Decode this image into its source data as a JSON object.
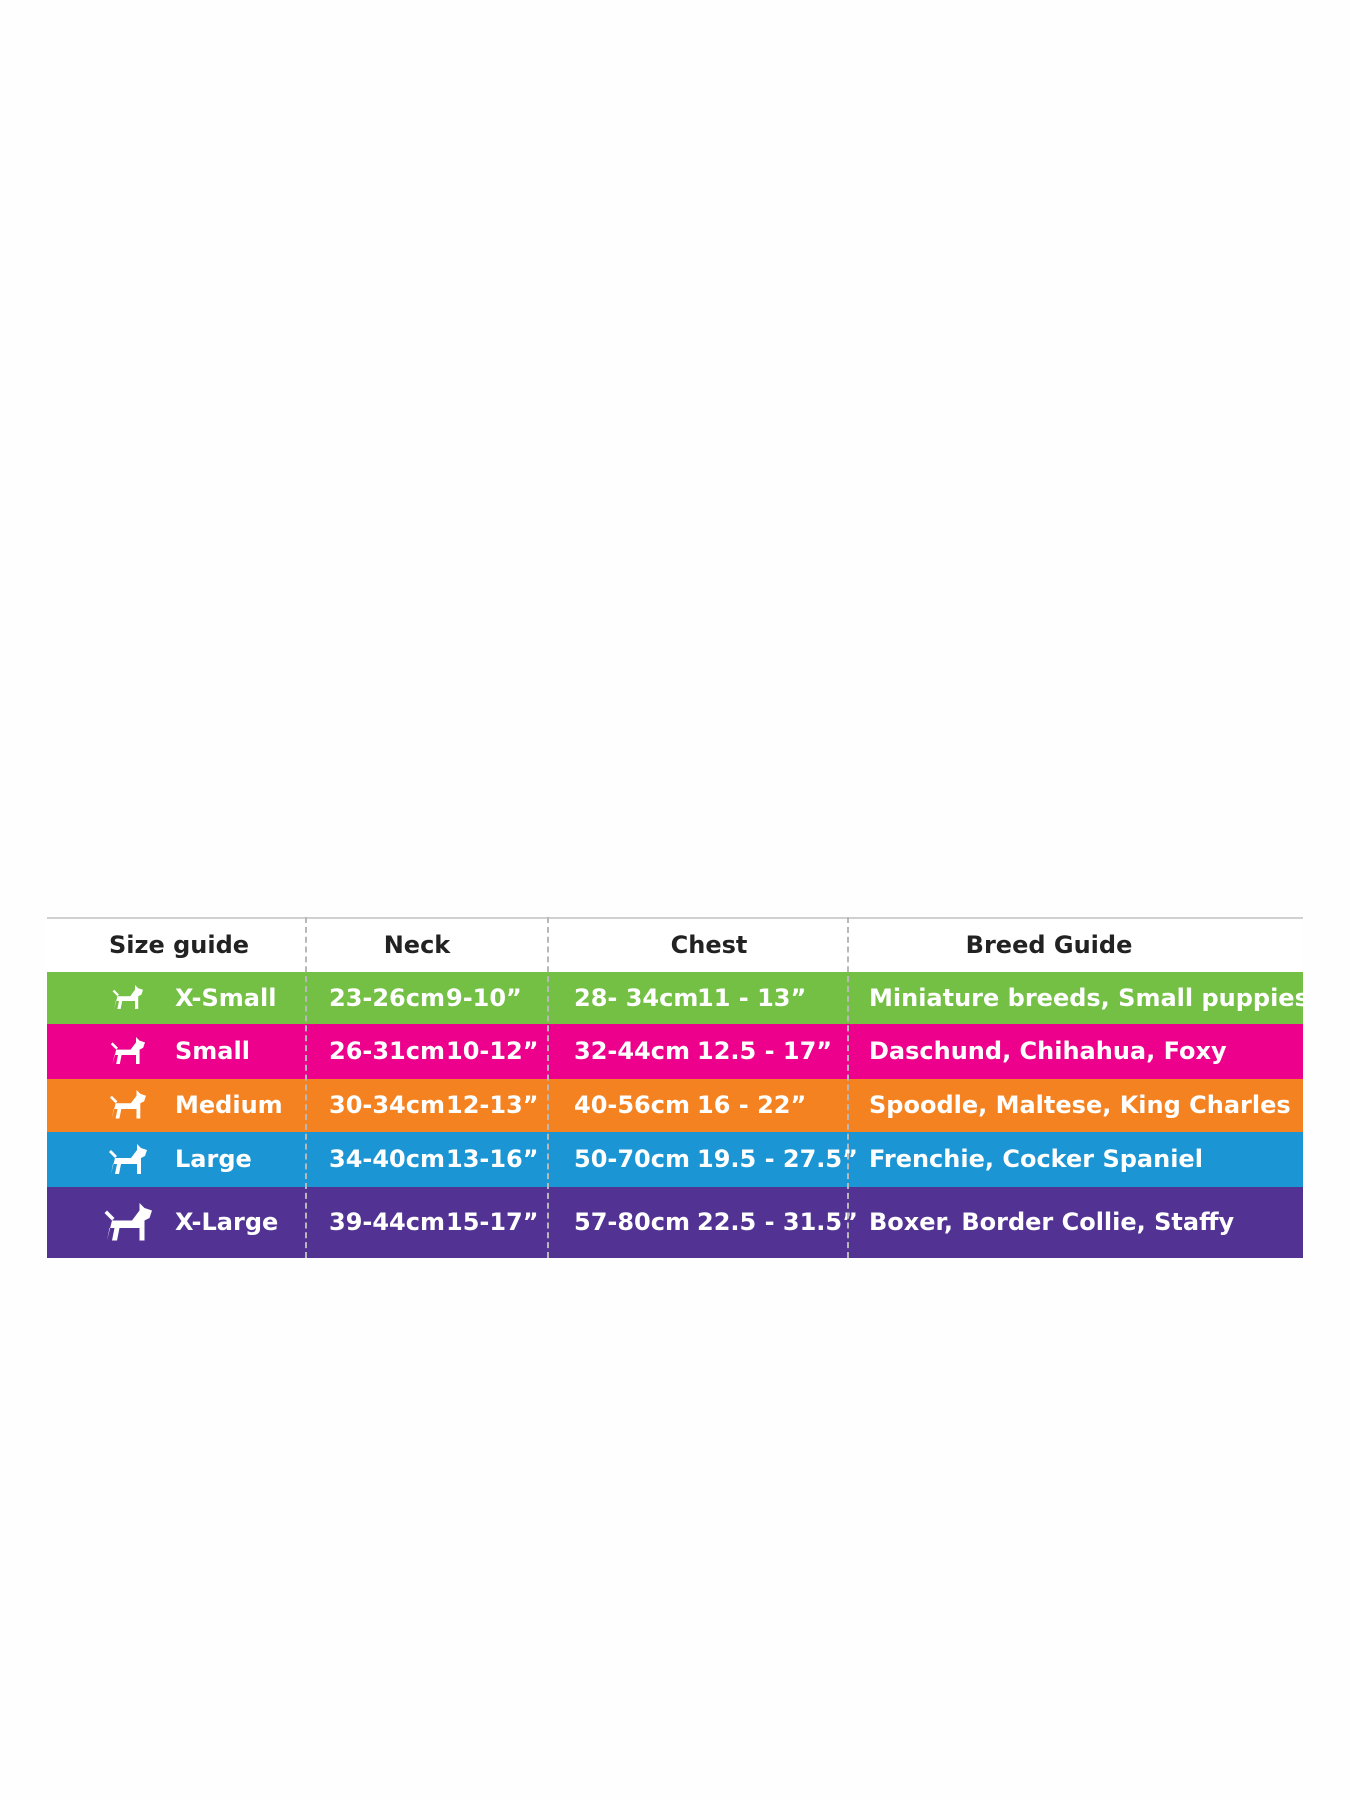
{
  "table": {
    "header": [
      "Size guide",
      "Neck",
      "Chest",
      "Breed Guide"
    ],
    "rows": [
      {
        "size": "X-Small",
        "neck_cm": "23-26cm",
        "neck_in": "9-10”",
        "chest_cm": "28- 34cm",
        "chest_in": "11 - 13”",
        "breeds": "Miniature breeds, Small puppies"
      },
      {
        "size": "Small",
        "neck_cm": "26-31cm",
        "neck_in": "10-12”",
        "chest_cm": "32-44cm",
        "chest_in": "12.5 - 17”",
        "breeds": "Daschund, Chihahua, Foxy"
      },
      {
        "size": "Medium",
        "neck_cm": "30-34cm",
        "neck_in": "12-13”",
        "chest_cm": "40-56cm",
        "chest_in": "16 - 22”",
        "breeds": "Spoodle, Maltese, King Charles"
      },
      {
        "size": "Large",
        "neck_cm": "34-40cm",
        "neck_in": "13-16”",
        "chest_cm": "50-70cm",
        "chest_in": "19.5 - 27.5”",
        "breeds": "Frenchie, Cocker Spaniel"
      },
      {
        "size": "X-Large",
        "neck_cm": "39-44cm",
        "neck_in": "15-17”",
        "chest_cm": "57-80cm",
        "chest_in": "22.5 - 31.5”",
        "breeds": "Boxer, Border Collie, Staffy"
      }
    ]
  }
}
